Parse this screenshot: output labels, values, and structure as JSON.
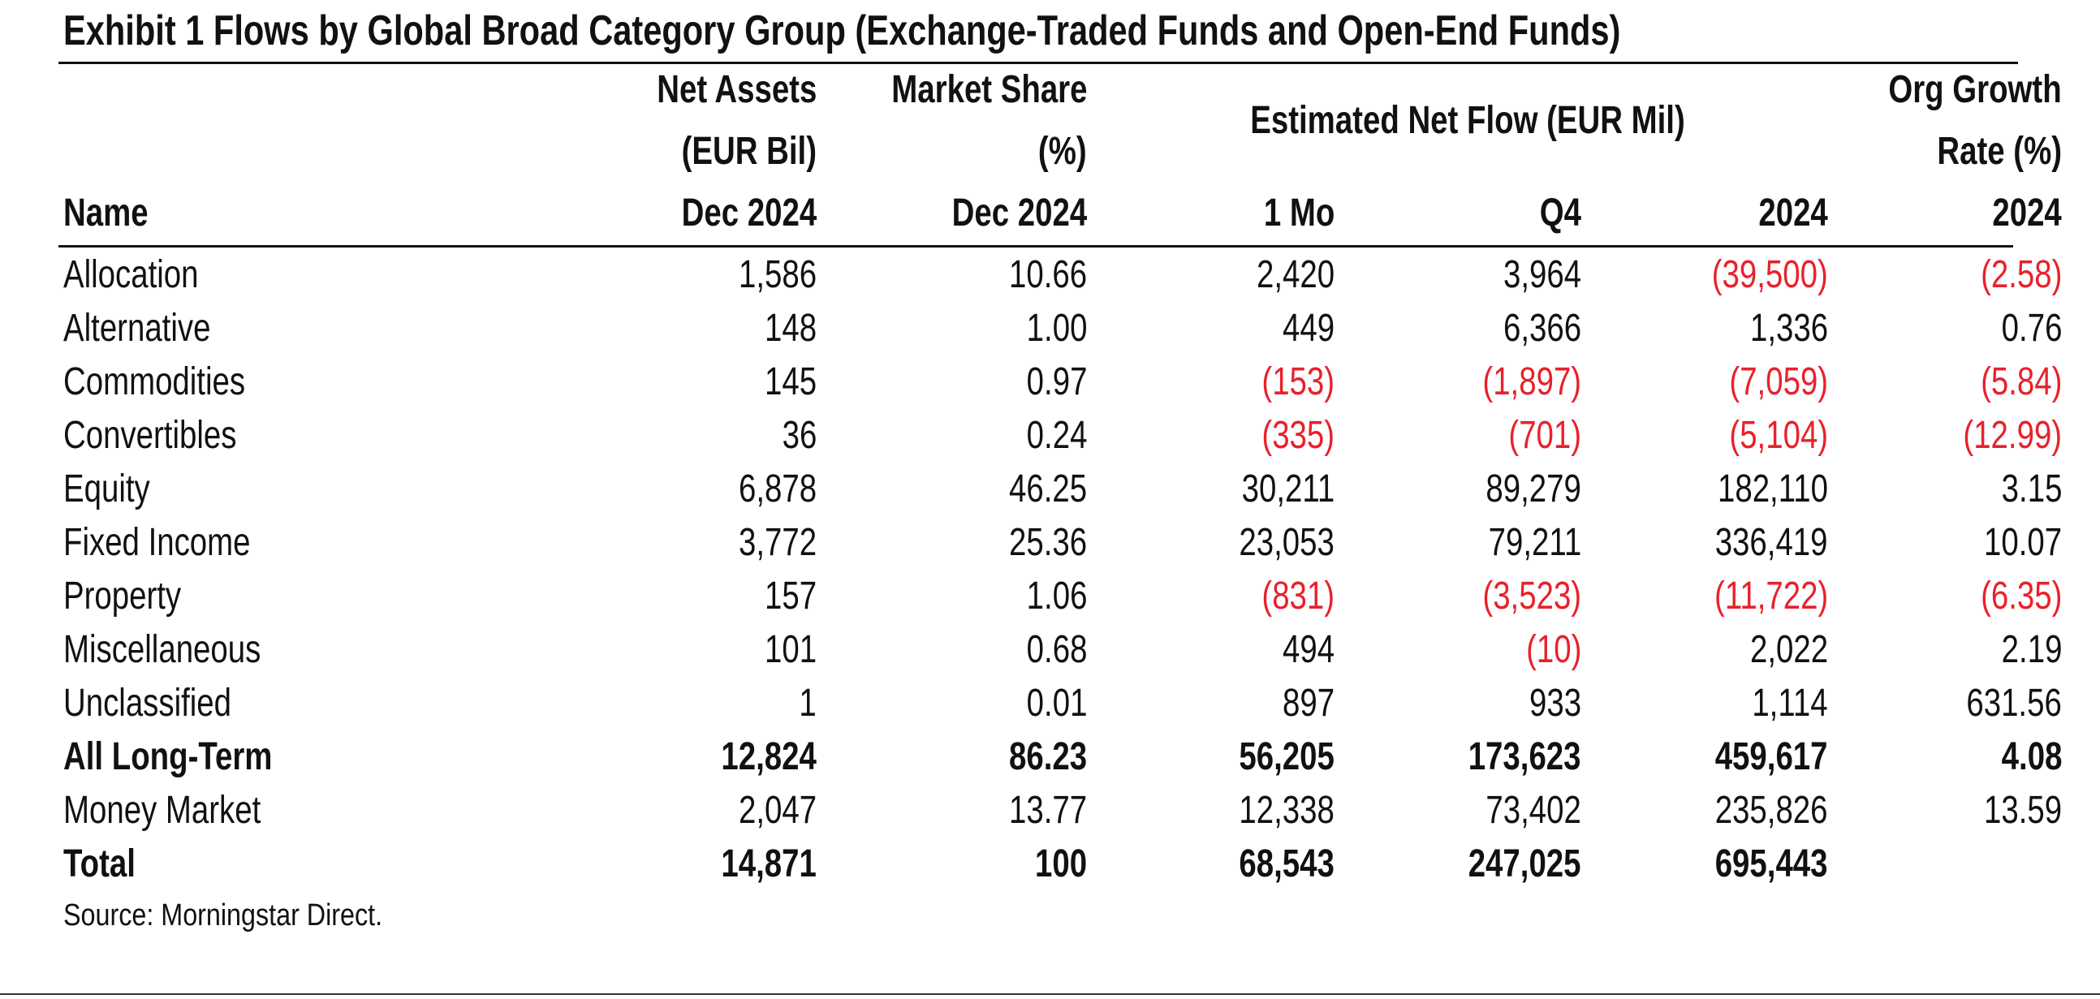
{
  "title": "Exhibit 1 Flows by Global Broad Category Group (Exchange-Traded Funds and Open-End Funds)",
  "headers": {
    "name": "Name",
    "net_assets_1": "Net Assets",
    "net_assets_2": "(EUR Bil)",
    "net_assets_3": "Dec 2024",
    "market_share_1": "Market Share",
    "market_share_2": "(%)",
    "market_share_3": "Dec 2024",
    "net_flow_group": "Estimated Net Flow (EUR Mil)",
    "flow_1mo": "1 Mo",
    "flow_q4": "Q4",
    "flow_2024": "2024",
    "org_growth_1": "Org Growth",
    "org_growth_2": "Rate (%)",
    "org_growth_3": "2024"
  },
  "colors": {
    "negative": "#e8212b",
    "text": "#111111"
  },
  "rows": [
    {
      "name": "Allocation",
      "net_assets": "1,586",
      "market_share": "10.66",
      "flow_1mo": "2,420",
      "flow_q4": "3,964",
      "flow_2024": "(39,500)",
      "org_growth": "(2.58)",
      "bold": false
    },
    {
      "name": "Alternative",
      "net_assets": "148",
      "market_share": "1.00",
      "flow_1mo": "449",
      "flow_q4": "6,366",
      "flow_2024": "1,336",
      "org_growth": "0.76",
      "bold": false
    },
    {
      "name": "Commodities",
      "net_assets": "145",
      "market_share": "0.97",
      "flow_1mo": "(153)",
      "flow_q4": "(1,897)",
      "flow_2024": "(7,059)",
      "org_growth": "(5.84)",
      "bold": false
    },
    {
      "name": "Convertibles",
      "net_assets": "36",
      "market_share": "0.24",
      "flow_1mo": "(335)",
      "flow_q4": "(701)",
      "flow_2024": "(5,104)",
      "org_growth": "(12.99)",
      "bold": false
    },
    {
      "name": "Equity",
      "net_assets": "6,878",
      "market_share": "46.25",
      "flow_1mo": "30,211",
      "flow_q4": "89,279",
      "flow_2024": "182,110",
      "org_growth": "3.15",
      "bold": false
    },
    {
      "name": "Fixed Income",
      "net_assets": "3,772",
      "market_share": "25.36",
      "flow_1mo": "23,053",
      "flow_q4": "79,211",
      "flow_2024": "336,419",
      "org_growth": "10.07",
      "bold": false
    },
    {
      "name": "Property",
      "net_assets": "157",
      "market_share": "1.06",
      "flow_1mo": "(831)",
      "flow_q4": "(3,523)",
      "flow_2024": "(11,722)",
      "org_growth": "(6.35)",
      "bold": false
    },
    {
      "name": "Miscellaneous",
      "net_assets": "101",
      "market_share": "0.68",
      "flow_1mo": "494",
      "flow_q4": "(10)",
      "flow_2024": "2,022",
      "org_growth": "2.19",
      "bold": false
    },
    {
      "name": "Unclassified",
      "net_assets": "1",
      "market_share": "0.01",
      "flow_1mo": "897",
      "flow_q4": "933",
      "flow_2024": "1,114",
      "org_growth": "631.56",
      "bold": false
    },
    {
      "name": "All Long-Term",
      "net_assets": "12,824",
      "market_share": "86.23",
      "flow_1mo": "56,205",
      "flow_q4": "173,623",
      "flow_2024": "459,617",
      "org_growth": "4.08",
      "bold": true
    },
    {
      "name": "Money Market",
      "net_assets": "2,047",
      "market_share": "13.77",
      "flow_1mo": "12,338",
      "flow_q4": "73,402",
      "flow_2024": "235,826",
      "org_growth": "13.59",
      "bold": false
    },
    {
      "name": "Total",
      "net_assets": "14,871",
      "market_share": "100",
      "flow_1mo": "68,543",
      "flow_q4": "247,025",
      "flow_2024": "695,443",
      "org_growth": "",
      "bold": true
    }
  ],
  "source": "Source: Morningstar Direct."
}
